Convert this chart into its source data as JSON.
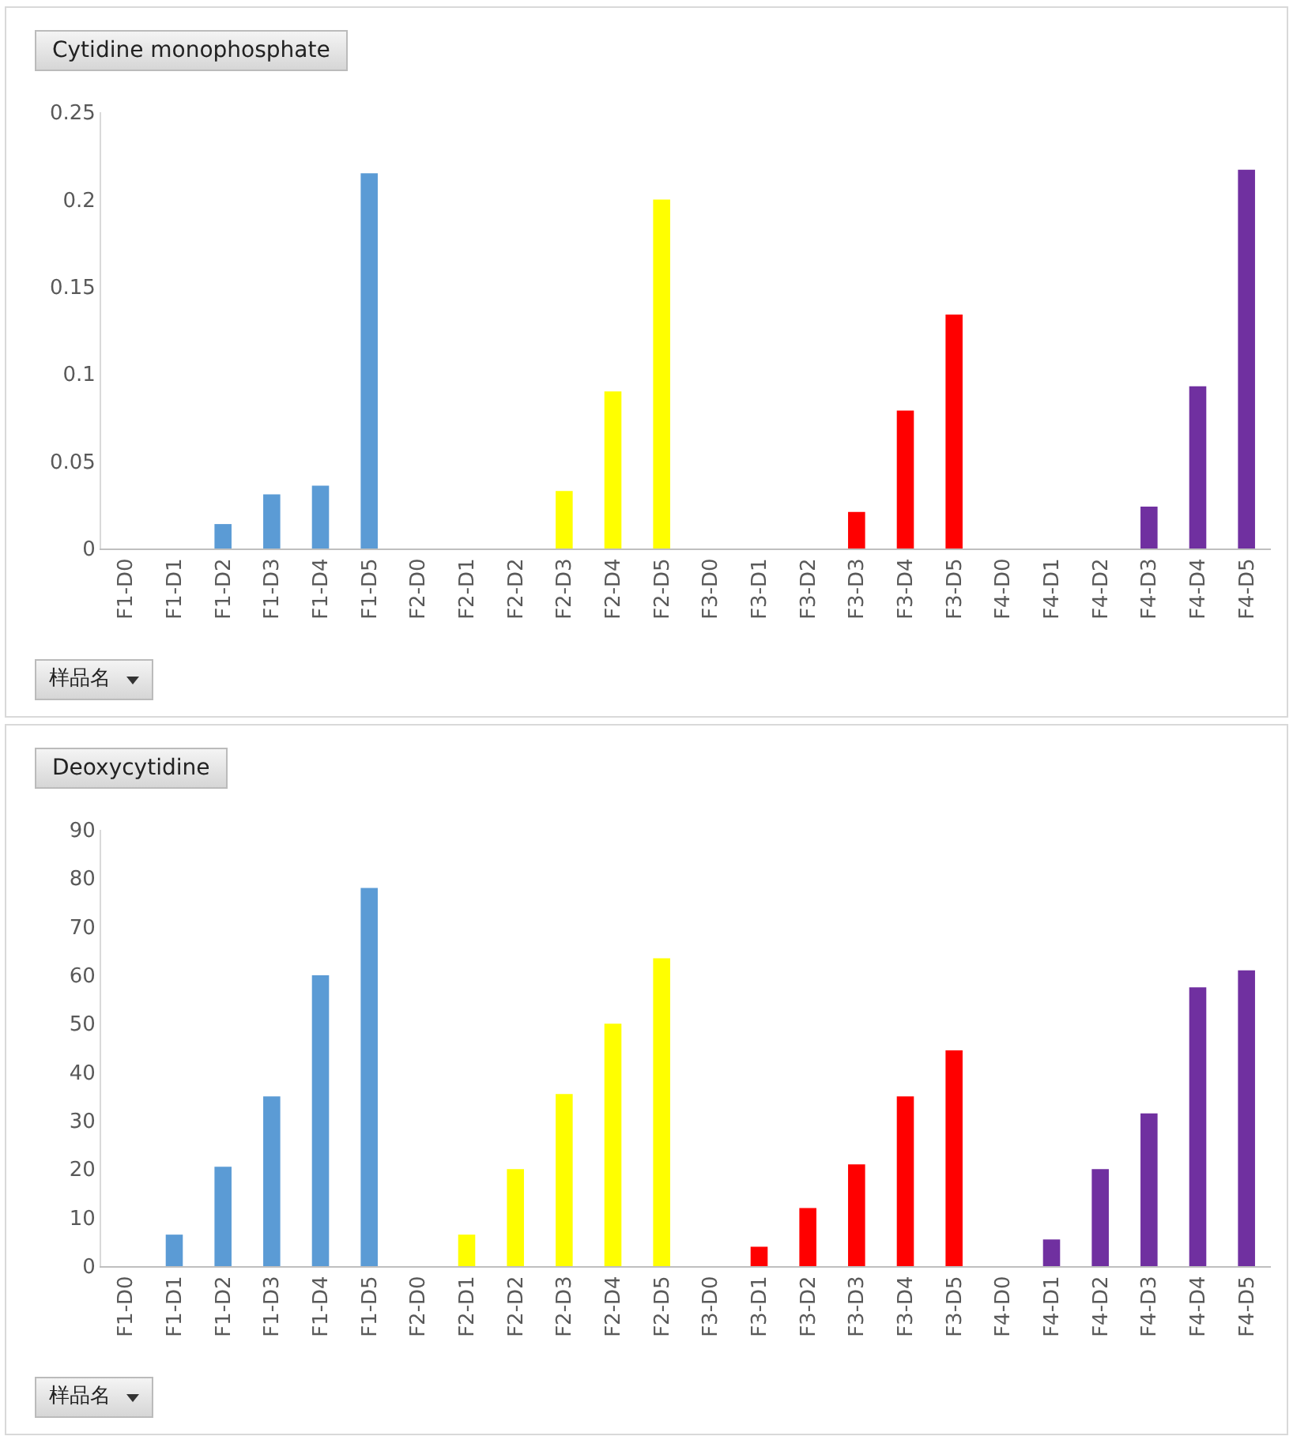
{
  "chart_data": [
    {
      "type": "bar",
      "title": "Cytidine monophosphate",
      "categories": [
        "F1-D0",
        "F1-D1",
        "F1-D2",
        "F1-D3",
        "F1-D4",
        "F1-D5",
        "F2-D0",
        "F2-D1",
        "F2-D2",
        "F2-D3",
        "F2-D4",
        "F2-D5",
        "F3-D0",
        "F3-D1",
        "F3-D2",
        "F3-D3",
        "F3-D4",
        "F3-D5",
        "F4-D0",
        "F4-D1",
        "F4-D2",
        "F4-D3",
        "F4-D4",
        "F4-D5"
      ],
      "values": [
        null,
        null,
        0.014,
        0.031,
        0.036,
        0.215,
        null,
        null,
        null,
        0.033,
        0.09,
        0.2,
        null,
        null,
        null,
        0.021,
        0.079,
        0.134,
        null,
        null,
        null,
        0.024,
        0.093,
        0.217
      ],
      "colors": [
        "#5b9bd5",
        "#5b9bd5",
        "#5b9bd5",
        "#5b9bd5",
        "#5b9bd5",
        "#5b9bd5",
        "#ffff00",
        "#ffff00",
        "#ffff00",
        "#ffff00",
        "#ffff00",
        "#ffff00",
        "#ff0000",
        "#ff0000",
        "#ff0000",
        "#ff0000",
        "#ff0000",
        "#ff0000",
        "#7030a0",
        "#7030a0",
        "#7030a0",
        "#7030a0",
        "#7030a0",
        "#7030a0"
      ],
      "ylim": [
        0,
        0.25
      ],
      "yticks": [
        0,
        0.05,
        0.1,
        0.15,
        0.2,
        0.25
      ],
      "annotations": [
        "样品名"
      ]
    },
    {
      "type": "bar",
      "title": "Deoxycytidine",
      "categories": [
        "F1-D0",
        "F1-D1",
        "F1-D2",
        "F1-D3",
        "F1-D4",
        "F1-D5",
        "F2-D0",
        "F2-D1",
        "F2-D2",
        "F2-D3",
        "F2-D4",
        "F2-D5",
        "F3-D0",
        "F3-D1",
        "F3-D2",
        "F3-D3",
        "F3-D4",
        "F3-D5",
        "F4-D0",
        "F4-D1",
        "F4-D2",
        "F4-D3",
        "F4-D4",
        "F4-D5"
      ],
      "values": [
        null,
        6.5,
        20.5,
        35,
        60,
        78,
        null,
        6.5,
        20,
        35.5,
        50,
        63.5,
        null,
        4,
        12,
        21,
        35,
        44.5,
        null,
        5.5,
        20,
        31.5,
        57.5,
        61
      ],
      "colors": [
        "#5b9bd5",
        "#5b9bd5",
        "#5b9bd5",
        "#5b9bd5",
        "#5b9bd5",
        "#5b9bd5",
        "#ffff00",
        "#ffff00",
        "#ffff00",
        "#ffff00",
        "#ffff00",
        "#ffff00",
        "#ff0000",
        "#ff0000",
        "#ff0000",
        "#ff0000",
        "#ff0000",
        "#ff0000",
        "#7030a0",
        "#7030a0",
        "#7030a0",
        "#7030a0",
        "#7030a0",
        "#7030a0"
      ],
      "ylim": [
        0,
        90
      ],
      "yticks": [
        0,
        10,
        20,
        30,
        40,
        50,
        60,
        70,
        80,
        90
      ],
      "annotations": [
        "样品名"
      ]
    }
  ]
}
